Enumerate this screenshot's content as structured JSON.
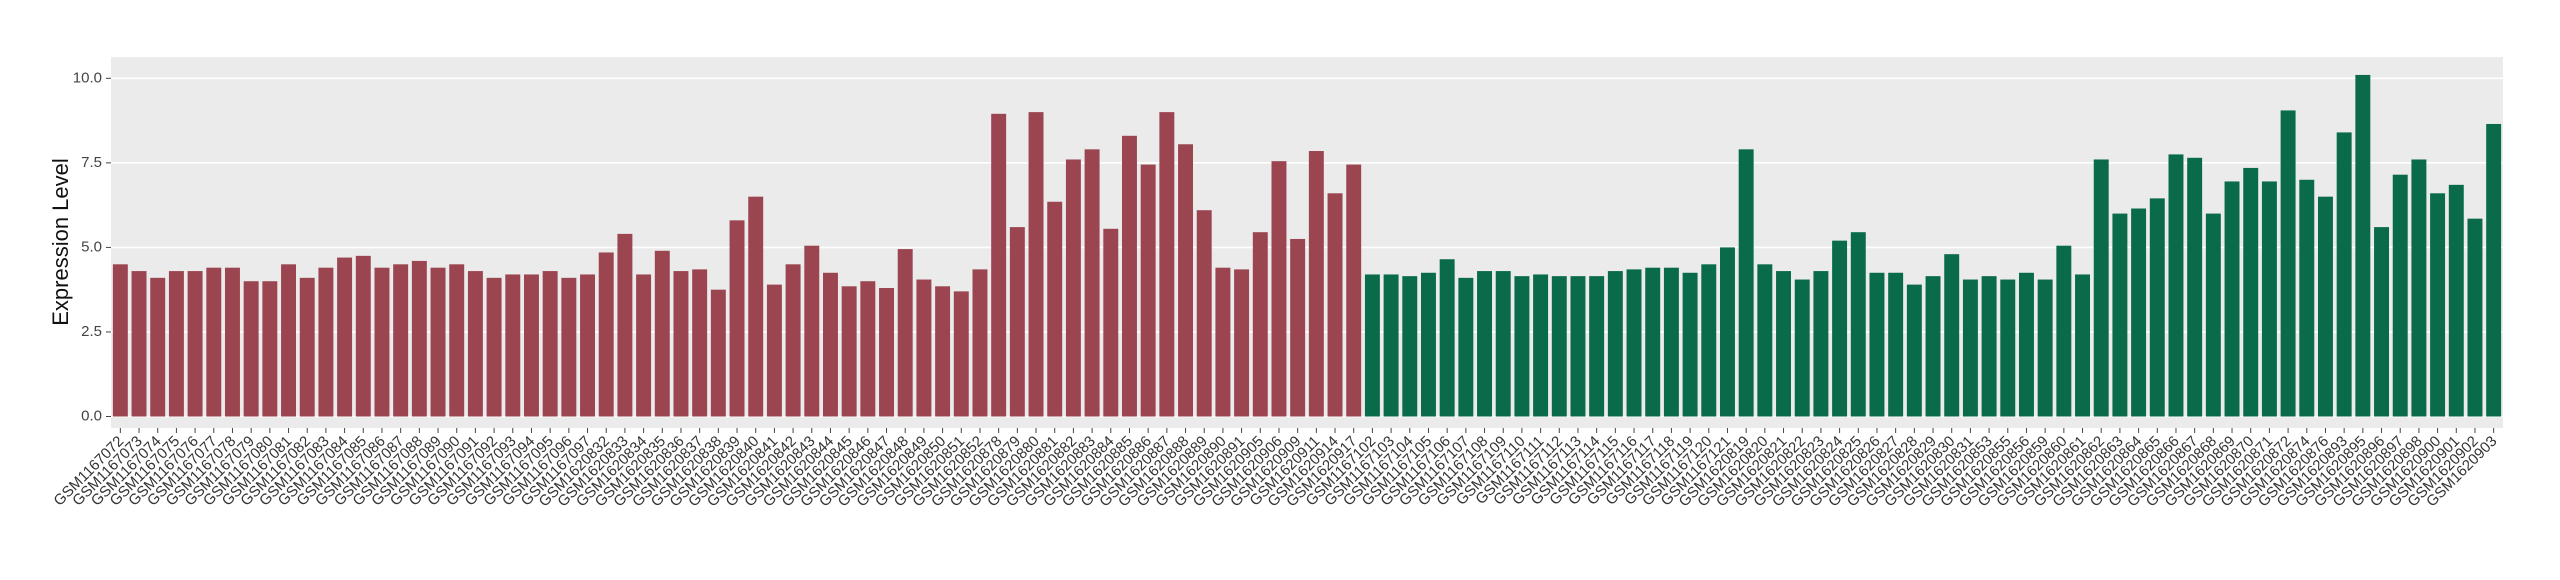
{
  "chart_data": {
    "type": "bar",
    "y_label": "Expression Level",
    "categories": [
      "GSM1167072",
      "GSM1167073",
      "GSM1167074",
      "GSM1167075",
      "GSM1167076",
      "GSM1167077",
      "GSM1167078",
      "GSM1167079",
      "GSM1167080",
      "GSM1167081",
      "GSM1167082",
      "GSM1167083",
      "GSM1167084",
      "GSM1167085",
      "GSM1167086",
      "GSM1167087",
      "GSM1167088",
      "GSM1167089",
      "GSM1167090",
      "GSM1167091",
      "GSM1167092",
      "GSM1167093",
      "GSM1167094",
      "GSM1167095",
      "GSM1167096",
      "GSM1167097",
      "GSM1620832",
      "GSM1620833",
      "GSM1620834",
      "GSM1620835",
      "GSM1620836",
      "GSM1620837",
      "GSM1620838",
      "GSM1620839",
      "GSM1620840",
      "GSM1620841",
      "GSM1620842",
      "GSM1620843",
      "GSM1620844",
      "GSM1620845",
      "GSM1620846",
      "GSM1620847",
      "GSM1620848",
      "GSM1620849",
      "GSM1620850",
      "GSM1620851",
      "GSM1620852",
      "GSM1620878",
      "GSM1620879",
      "GSM1620880",
      "GSM1620881",
      "GSM1620882",
      "GSM1620883",
      "GSM1620884",
      "GSM1620885",
      "GSM1620886",
      "GSM1620887",
      "GSM1620888",
      "GSM1620889",
      "GSM1620890",
      "GSM1620891",
      "GSM1620905",
      "GSM1620906",
      "GSM1620909",
      "GSM1620911",
      "GSM1620914",
      "GSM1620917",
      "GSM1167102",
      "GSM1167103",
      "GSM1167104",
      "GSM1167105",
      "GSM1167106",
      "GSM1167107",
      "GSM1167108",
      "GSM1167109",
      "GSM1167110",
      "GSM1167111",
      "GSM1167112",
      "GSM1167113",
      "GSM1167114",
      "GSM1167115",
      "GSM1167116",
      "GSM1167117",
      "GSM1167118",
      "GSM1167119",
      "GSM1167120",
      "GSM1167121",
      "GSM1620819",
      "GSM1620820",
      "GSM1620821",
      "GSM1620822",
      "GSM1620823",
      "GSM1620824",
      "GSM1620825",
      "GSM1620826",
      "GSM1620827",
      "GSM1620828",
      "GSM1620829",
      "GSM1620830",
      "GSM1620831",
      "GSM1620853",
      "GSM1620855",
      "GSM1620856",
      "GSM1620859",
      "GSM1620860",
      "GSM1620861",
      "GSM1620862",
      "GSM1620863",
      "GSM1620864",
      "GSM1620865",
      "GSM1620866",
      "GSM1620867",
      "GSM1620868",
      "GSM1620869",
      "GSM1620870",
      "GSM1620871",
      "GSM1620872",
      "GSM1620874",
      "GSM1620876",
      "GSM1620893",
      "GSM1620895",
      "GSM1620896",
      "GSM1620897",
      "GSM1620898",
      "GSM1620900",
      "GSM1620901",
      "GSM1620902",
      "GSM1620903"
    ],
    "values": [
      4.5,
      4.3,
      4.1,
      4.3,
      4.3,
      4.4,
      4.4,
      4.0,
      4.0,
      4.5,
      4.1,
      4.4,
      4.7,
      4.75,
      4.4,
      4.5,
      4.6,
      4.4,
      4.5,
      4.3,
      4.1,
      4.2,
      4.2,
      4.3,
      4.1,
      4.2,
      4.85,
      5.4,
      4.2,
      4.9,
      4.3,
      4.35,
      3.75,
      5.8,
      6.5,
      3.9,
      4.5,
      5.05,
      4.25,
      3.85,
      4.0,
      3.8,
      4.95,
      4.05,
      3.85,
      3.7,
      4.35,
      8.95,
      5.6,
      9.0,
      6.35,
      7.6,
      7.9,
      5.55,
      8.3,
      7.45,
      9.0,
      8.05,
      6.1,
      4.4,
      4.35,
      5.45,
      7.55,
      5.25,
      7.85,
      6.6,
      7.45,
      4.2,
      4.2,
      4.15,
      4.25,
      4.65,
      4.1,
      4.3,
      4.3,
      4.15,
      4.2,
      4.15,
      4.15,
      4.15,
      4.3,
      4.35,
      4.4,
      4.4,
      4.25,
      4.5,
      5.0,
      7.9,
      4.5,
      4.3,
      4.05,
      4.3,
      5.2,
      5.45,
      4.25,
      4.25,
      3.9,
      4.15,
      4.8,
      4.05,
      4.15,
      4.05,
      4.25,
      4.05,
      5.05,
      4.2,
      7.6,
      6.0,
      6.15,
      6.45,
      7.75,
      7.65,
      6.0,
      6.95,
      7.35,
      6.95,
      9.05,
      7.0,
      6.5,
      8.4,
      10.1,
      5.6,
      7.15,
      7.6,
      6.6,
      6.85,
      5.85,
      8.65
    ],
    "colors": [
      "#9b4550",
      "#9b4550",
      "#9b4550",
      "#9b4550",
      "#9b4550",
      "#9b4550",
      "#9b4550",
      "#9b4550",
      "#9b4550",
      "#9b4550",
      "#9b4550",
      "#9b4550",
      "#9b4550",
      "#9b4550",
      "#9b4550",
      "#9b4550",
      "#9b4550",
      "#9b4550",
      "#9b4550",
      "#9b4550",
      "#9b4550",
      "#9b4550",
      "#9b4550",
      "#9b4550",
      "#9b4550",
      "#9b4550",
      "#9b4550",
      "#9b4550",
      "#9b4550",
      "#9b4550",
      "#9b4550",
      "#9b4550",
      "#9b4550",
      "#9b4550",
      "#9b4550",
      "#9b4550",
      "#9b4550",
      "#9b4550",
      "#9b4550",
      "#9b4550",
      "#9b4550",
      "#9b4550",
      "#9b4550",
      "#9b4550",
      "#9b4550",
      "#9b4550",
      "#9b4550",
      "#9b4550",
      "#9b4550",
      "#9b4550",
      "#9b4550",
      "#9b4550",
      "#9b4550",
      "#9b4550",
      "#9b4550",
      "#9b4550",
      "#9b4550",
      "#9b4550",
      "#9b4550",
      "#9b4550",
      "#9b4550",
      "#9b4550",
      "#9b4550",
      "#9b4550",
      "#9b4550",
      "#9b4550",
      "#9b4550",
      "#0a6b4a",
      "#0a6b4a",
      "#0a6b4a",
      "#0a6b4a",
      "#0a6b4a",
      "#0a6b4a",
      "#0a6b4a",
      "#0a6b4a",
      "#0a6b4a",
      "#0a6b4a",
      "#0a6b4a",
      "#0a6b4a",
      "#0a6b4a",
      "#0a6b4a",
      "#0a6b4a",
      "#0a6b4a",
      "#0a6b4a",
      "#0a6b4a",
      "#0a6b4a",
      "#0a6b4a",
      "#0a6b4a",
      "#0a6b4a",
      "#0a6b4a",
      "#0a6b4a",
      "#0a6b4a",
      "#0a6b4a",
      "#0a6b4a",
      "#0a6b4a",
      "#0a6b4a",
      "#0a6b4a",
      "#0a6b4a",
      "#0a6b4a",
      "#0a6b4a",
      "#0a6b4a",
      "#0a6b4a",
      "#0a6b4a",
      "#0a6b4a",
      "#0a6b4a",
      "#0a6b4a",
      "#0a6b4a",
      "#0a6b4a",
      "#0a6b4a",
      "#0a6b4a",
      "#0a6b4a",
      "#0a6b4a",
      "#0a6b4a",
      "#0a6b4a",
      "#0a6b4a",
      "#0a6b4a",
      "#0a6b4a",
      "#0a6b4a",
      "#0a6b4a",
      "#0a6b4a",
      "#0a6b4a",
      "#0a6b4a",
      "#0a6b4a",
      "#0a6b4a",
      "#0a6b4a",
      "#0a6b4a",
      "#0a6b4a",
      "#0a6b4a"
    ],
    "ylim": [
      -0.34,
      10.63
    ],
    "yticks": [
      {
        "value": 0,
        "label": "0.0"
      },
      {
        "value": 2.5,
        "label": "2.5"
      },
      {
        "value": 5,
        "label": "5.0"
      },
      {
        "value": 7.5,
        "label": "7.5"
      },
      {
        "value": 10,
        "label": "10.0"
      }
    ],
    "grid": true
  }
}
